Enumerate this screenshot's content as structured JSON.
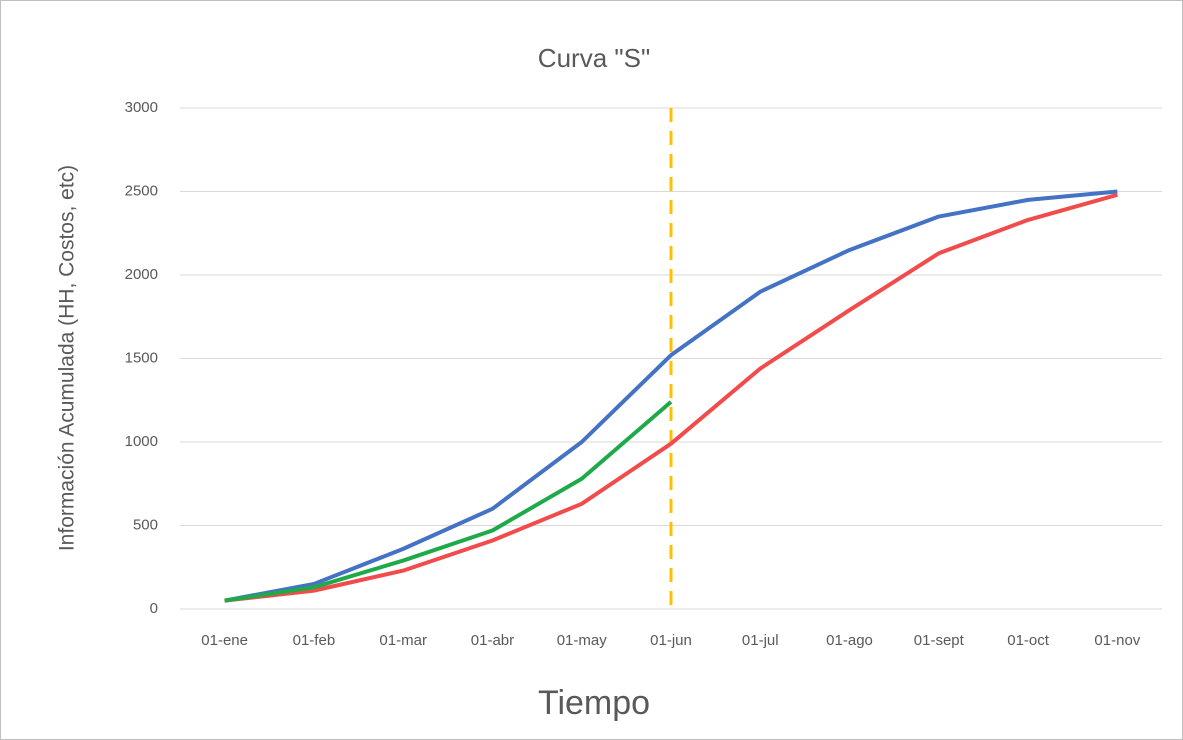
{
  "chart_data": {
    "type": "line",
    "title": "Curva \"S\"",
    "y_label": "Información Acumulada (HH, Costos, etc)",
    "x_label": "Tiempo",
    "categories": [
      "01-ene",
      "01-feb",
      "01-mar",
      "01-abr",
      "01-may",
      "01-jun",
      "01-jul",
      "01-ago",
      "01-sept",
      "01-oct",
      "01-nov"
    ],
    "series": [
      {
        "color": "#4472c4",
        "values": [
          50,
          150,
          360,
          600,
          1000,
          1520,
          1900,
          2150,
          2350,
          2450,
          2500
        ]
      },
      {
        "color": "#f24b4b",
        "values": [
          50,
          110,
          230,
          410,
          630,
          990,
          1440,
          1790,
          2130,
          2330,
          2480
        ]
      },
      {
        "color": "#1faa4a",
        "values": [
          50,
          130,
          290,
          470,
          780,
          1240,
          null,
          null,
          null,
          null,
          null
        ]
      }
    ],
    "reference_line": {
      "category": "01-jun",
      "color": "#ffc000",
      "style": "dashed"
    },
    "ylim": [
      0,
      3000
    ],
    "yticks": [
      0,
      500,
      1000,
      1500,
      2000,
      2500,
      3000
    ],
    "grid": true
  }
}
